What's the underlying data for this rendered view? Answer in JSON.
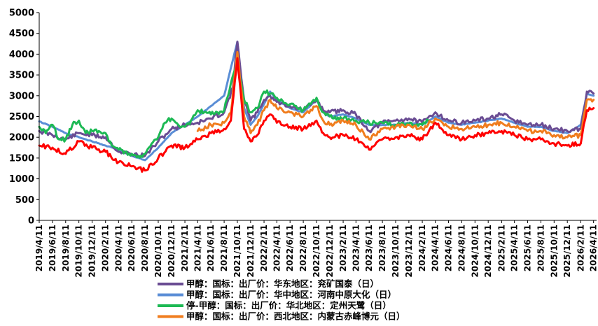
{
  "chart_data": {
    "type": "line",
    "title": "",
    "xlabel": "",
    "ylabel": "",
    "ylim": [
      0,
      5000
    ],
    "yticks": [
      "0",
      "500",
      "1000",
      "1500",
      "2000",
      "2500",
      "3000",
      "3500",
      "4000",
      "4500",
      "5000"
    ],
    "xticks": [
      "2019/4/11",
      "2019/6/11",
      "2019/8/11",
      "2019/10/11",
      "2019/12/11",
      "2020/2/11",
      "2020/4/11",
      "2020/6/11",
      "2020/8/11",
      "2020/10/11",
      "2020/12/11",
      "2021/2/11",
      "2021/4/11",
      "2021/6/11",
      "2021/8/11",
      "2021/10/11",
      "2021/12/11",
      "2022/2/11",
      "2022/4/11",
      "2022/6/11",
      "2022/8/11",
      "2022/10/11",
      "2022/12/11",
      "2023/2/11",
      "2023/4/11",
      "2023/6/11",
      "2023/8/11",
      "2023/10/11",
      "2023/12/11",
      "2024/2/11",
      "2024/4/11",
      "2024/6/11",
      "2024/8/11",
      "2024/10/11",
      "2024/12/11",
      "2025/2/11",
      "2025/4/11",
      "2025/6/11",
      "2025/8/11",
      "2025/10/11",
      "2025/12/11",
      "2026/2/11",
      "2026/4/11"
    ],
    "grid": false,
    "legend_position": "bottom",
    "series": [
      {
        "name": "甲醇：国标：出厂价：华东地区：兖矿国泰（日）",
        "color": "#6a4c93",
        "points": [
          [
            "2019/4/11",
            2150
          ],
          [
            "2019/6/11",
            2050
          ],
          [
            "2019/8/11",
            1950
          ],
          [
            "2019/10/11",
            2100
          ],
          [
            "2019/12/11",
            2050
          ],
          [
            "2020/2/11",
            2000
          ],
          [
            "2020/4/11",
            1650
          ],
          [
            "2020/6/11",
            1600
          ],
          [
            "2020/8/11",
            1550
          ],
          [
            "2020/10/11",
            1900
          ],
          [
            "2020/12/11",
            2200
          ],
          [
            "2021/2/11",
            2300
          ],
          [
            "2021/4/11",
            2350
          ],
          [
            "2021/6/11",
            2450
          ],
          [
            "2021/8/11",
            2600
          ],
          [
            "2021/9/20",
            3200
          ],
          [
            "2021/10/11",
            4300
          ],
          [
            "2021/11/11",
            2900
          ],
          [
            "2021/12/11",
            2400
          ],
          [
            "2022/1/11",
            2600
          ],
          [
            "2022/2/11",
            2900
          ],
          [
            "2022/3/11",
            3000
          ],
          [
            "2022/4/11",
            2850
          ],
          [
            "2022/6/11",
            2750
          ],
          [
            "2022/8/11",
            2650
          ],
          [
            "2022/10/11",
            2900
          ],
          [
            "2022/11/11",
            2650
          ],
          [
            "2022/12/11",
            2600
          ],
          [
            "2023/2/11",
            2650
          ],
          [
            "2023/4/11",
            2550
          ],
          [
            "2023/6/11",
            2150
          ],
          [
            "2023/8/11",
            2350
          ],
          [
            "2023/10/11",
            2400
          ],
          [
            "2023/12/11",
            2450
          ],
          [
            "2024/2/11",
            2350
          ],
          [
            "2024/4/11",
            2600
          ],
          [
            "2024/6/11",
            2400
          ],
          [
            "2024/8/11",
            2350
          ],
          [
            "2024/10/11",
            2400
          ],
          [
            "2024/12/11",
            2450
          ],
          [
            "2025/2/11",
            2550
          ],
          [
            "2025/4/11",
            2400
          ],
          [
            "2025/6/11",
            2300
          ],
          [
            "2025/8/11",
            2300
          ],
          [
            "2025/10/11",
            2200
          ],
          [
            "2025/12/11",
            2150
          ],
          [
            "2026/2/11",
            2200
          ],
          [
            "2026/3/11",
            3100
          ],
          [
            "2026/4/11",
            3050
          ]
        ]
      },
      {
        "name": "甲醇：国标：出厂价：华中地区：河南中原大化（日）",
        "color": "#5b8ed6",
        "points": [
          [
            "2019/4/11",
            2380
          ],
          [
            "2019/6/11",
            2250
          ],
          [
            "2019/8/11",
            2100
          ],
          [
            "2019/10/11",
            2000
          ],
          [
            "2019/12/11",
            1900
          ],
          [
            "2020/2/11",
            1800
          ],
          [
            "2020/4/11",
            1700
          ],
          [
            "2020/6/11",
            1550
          ],
          [
            "2020/8/11",
            1450
          ],
          [
            "2020/10/11",
            1750
          ],
          [
            "2020/12/11",
            2100
          ],
          [
            "2021/2/11",
            2300
          ],
          [
            "2021/4/11",
            2500
          ],
          [
            "2021/6/11",
            2750
          ],
          [
            "2021/8/11",
            3000
          ],
          [
            "2021/10/11",
            4300
          ],
          [
            "2021/11/11",
            2700
          ],
          [
            "2021/12/11",
            2300
          ],
          [
            "2022/1/11",
            2500
          ],
          [
            "2022/2/11",
            2800
          ],
          [
            "2022/3/11",
            3100
          ],
          [
            "2022/4/11",
            2900
          ],
          [
            "2022/6/11",
            2700
          ],
          [
            "2022/8/11",
            2600
          ],
          [
            "2022/10/11",
            2900
          ],
          [
            "2022/11/11",
            2600
          ],
          [
            "2022/12/11",
            2500
          ],
          [
            "2023/2/11",
            2550
          ],
          [
            "2023/4/11",
            2450
          ],
          [
            "2023/6/11",
            2300
          ],
          [
            "2023/8/11",
            2300
          ],
          [
            "2023/10/11",
            2300
          ],
          [
            "2023/12/11",
            2350
          ],
          [
            "2024/2/11",
            2300
          ],
          [
            "2024/4/11",
            2500
          ],
          [
            "2024/6/11",
            2350
          ],
          [
            "2024/8/11",
            2300
          ],
          [
            "2024/10/11",
            2350
          ],
          [
            "2024/12/11",
            2400
          ],
          [
            "2025/2/11",
            2450
          ],
          [
            "2025/4/11",
            2350
          ],
          [
            "2025/6/11",
            2250
          ],
          [
            "2025/8/11",
            2250
          ],
          [
            "2025/10/11",
            2150
          ],
          [
            "2025/12/11",
            2100
          ],
          [
            "2026/2/11",
            2300
          ],
          [
            "2026/3/11",
            3050
          ],
          [
            "2026/4/11",
            3000
          ]
        ]
      },
      {
        "name": "停-甲醇：国标：出厂价：华北地区：定州天鹭（日）",
        "color": "#1db954",
        "points": [
          [
            "2019/4/11",
            2250
          ],
          [
            "2019/5/11",
            2100
          ],
          [
            "2019/6/11",
            2300
          ],
          [
            "2019/7/11",
            1950
          ],
          [
            "2019/8/11",
            1950
          ],
          [
            "2019/9/11",
            2300
          ],
          [
            "2019/10/11",
            2400
          ],
          [
            "2019/11/11",
            2100
          ],
          [
            "2019/12/11",
            2150
          ],
          [
            "2020/1/11",
            2150
          ],
          [
            "2020/2/11",
            2100
          ],
          [
            "2020/3/11",
            1800
          ],
          [
            "2020/4/11",
            1700
          ],
          [
            "2020/5/11",
            1650
          ],
          [
            "2020/6/11",
            1600
          ],
          [
            "2020/7/11",
            1550
          ],
          [
            "2020/8/11",
            1600
          ],
          [
            "2020/9/11",
            1850
          ],
          [
            "2020/10/11",
            2000
          ],
          [
            "2020/11/11",
            2350
          ],
          [
            "2020/12/11",
            2450
          ],
          [
            "2021/1/11",
            2300
          ],
          [
            "2021/2/11",
            2250
          ],
          [
            "2021/3/11",
            2400
          ],
          [
            "2021/4/11",
            2650
          ],
          [
            "2021/5/11",
            2600
          ],
          [
            "2021/6/11",
            2550
          ],
          [
            "2021/7/11",
            2600
          ],
          [
            "2021/8/11",
            2650
          ],
          [
            "2021/9/11",
            3300
          ],
          [
            "2021/10/11",
            3750
          ],
          [
            "2021/11/11",
            2900
          ],
          [
            "2021/12/11",
            2600
          ],
          [
            "2022/1/11",
            2700
          ],
          [
            "2022/2/11",
            3100
          ],
          [
            "2022/3/11",
            3050
          ],
          [
            "2022/4/11",
            2950
          ],
          [
            "2022/6/11",
            2800
          ],
          [
            "2022/8/11",
            2650
          ],
          [
            "2022/10/11",
            2950
          ],
          [
            "2022/11/11",
            2600
          ],
          [
            "2022/12/11",
            2500
          ],
          [
            "2023/2/11",
            2450
          ],
          [
            "2023/4/11",
            2400
          ],
          [
            "2023/6/11",
            2350
          ],
          [
            "2023/8/11",
            2350
          ],
          [
            "2023/10/11",
            2300
          ],
          [
            "2023/12/11",
            2300
          ],
          [
            "2024/2/11",
            2300
          ],
          [
            "2024/3/11",
            2400
          ]
        ]
      },
      {
        "name": "甲醇：国标：出厂价：西北地区：内蒙古赤峰博元（日）",
        "color": "#f07d1e",
        "points": [
          [
            "2021/4/11",
            2150
          ],
          [
            "2021/6/11",
            2300
          ],
          [
            "2021/8/11",
            2350
          ],
          [
            "2021/9/11",
            2600
          ],
          [
            "2021/10/11",
            4050
          ],
          [
            "2021/11/11",
            2500
          ],
          [
            "2021/12/11",
            2100
          ],
          [
            "2022/1/11",
            2300
          ],
          [
            "2022/2/11",
            2650
          ],
          [
            "2022/3/11",
            2900
          ],
          [
            "2022/4/11",
            2700
          ],
          [
            "2022/6/11",
            2600
          ],
          [
            "2022/8/11",
            2500
          ],
          [
            "2022/10/11",
            2750
          ],
          [
            "2022/11/11",
            2400
          ],
          [
            "2022/12/11",
            2300
          ],
          [
            "2023/2/11",
            2400
          ],
          [
            "2023/4/11",
            2300
          ],
          [
            "2023/6/11",
            1950
          ],
          [
            "2023/8/11",
            2200
          ],
          [
            "2023/10/11",
            2250
          ],
          [
            "2023/12/11",
            2300
          ],
          [
            "2024/2/11",
            2200
          ],
          [
            "2024/4/11",
            2450
          ],
          [
            "2024/6/11",
            2250
          ],
          [
            "2024/8/11",
            2200
          ],
          [
            "2024/10/11",
            2250
          ],
          [
            "2024/12/11",
            2300
          ],
          [
            "2025/2/11",
            2350
          ],
          [
            "2025/4/11",
            2250
          ],
          [
            "2025/6/11",
            2150
          ],
          [
            "2025/8/11",
            2150
          ],
          [
            "2025/10/11",
            2050
          ],
          [
            "2025/12/11",
            2000
          ],
          [
            "2026/2/11",
            2050
          ],
          [
            "2026/3/11",
            2900
          ],
          [
            "2026/4/11",
            2900
          ]
        ]
      },
      {
        "name": "",
        "color": "#ff0000",
        "points": [
          [
            "2019/4/11",
            1800
          ],
          [
            "2019/6/11",
            1750
          ],
          [
            "2019/8/11",
            1600
          ],
          [
            "2019/10/11",
            1900
          ],
          [
            "2019/12/11",
            1750
          ],
          [
            "2020/2/11",
            1650
          ],
          [
            "2020/4/11",
            1400
          ],
          [
            "2020/6/11",
            1300
          ],
          [
            "2020/8/11",
            1200
          ],
          [
            "2020/10/11",
            1500
          ],
          [
            "2020/12/11",
            1800
          ],
          [
            "2021/2/11",
            1750
          ],
          [
            "2021/4/11",
            1950
          ],
          [
            "2021/6/11",
            2100
          ],
          [
            "2021/8/11",
            2200
          ],
          [
            "2021/9/11",
            2400
          ],
          [
            "2021/10/11",
            3900
          ],
          [
            "2021/11/11",
            2200
          ],
          [
            "2021/12/11",
            1900
          ],
          [
            "2022/1/11",
            2050
          ],
          [
            "2022/2/11",
            2400
          ],
          [
            "2022/3/11",
            2550
          ],
          [
            "2022/4/11",
            2350
          ],
          [
            "2022/6/11",
            2250
          ],
          [
            "2022/8/11",
            2200
          ],
          [
            "2022/10/11",
            2400
          ],
          [
            "2022/11/11",
            2100
          ],
          [
            "2022/12/11",
            2000
          ],
          [
            "2023/2/11",
            2050
          ],
          [
            "2023/4/11",
            1950
          ],
          [
            "2023/6/11",
            1700
          ],
          [
            "2023/8/11",
            1950
          ],
          [
            "2023/10/11",
            2000
          ],
          [
            "2023/12/11",
            2050
          ],
          [
            "2024/2/11",
            1950
          ],
          [
            "2024/4/11",
            2350
          ],
          [
            "2024/6/11",
            2050
          ],
          [
            "2024/8/11",
            1950
          ],
          [
            "2024/10/11",
            2050
          ],
          [
            "2024/12/11",
            2100
          ],
          [
            "2025/2/11",
            2150
          ],
          [
            "2025/4/11",
            2050
          ],
          [
            "2025/6/11",
            1950
          ],
          [
            "2025/8/11",
            1950
          ],
          [
            "2025/10/11",
            1850
          ],
          [
            "2025/12/11",
            1800
          ],
          [
            "2026/2/11",
            1850
          ],
          [
            "2026/3/11",
            2650
          ],
          [
            "2026/4/11",
            2700
          ]
        ]
      }
    ]
  }
}
